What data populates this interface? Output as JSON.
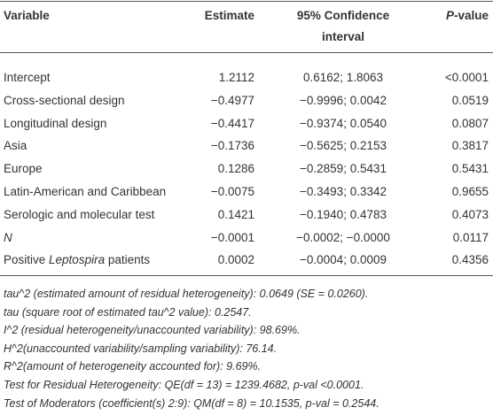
{
  "table": {
    "header": [
      "Variable",
      "Estimate",
      "95% Confidence interval",
      [
        {
          "text": "P",
          "italic": true
        },
        {
          "text": "-value"
        }
      ]
    ],
    "rows": [
      [
        "Intercept",
        "1.2112",
        "0.6162; 1.8063",
        "<0.0001"
      ],
      [
        "Cross-sectional design",
        "−0.4977",
        "−0.9996; 0.0042",
        "0.0519"
      ],
      [
        "Longitudinal design",
        "−0.4417",
        "−0.9374; 0.0540",
        "0.0807"
      ],
      [
        "Asia",
        "−0.1736",
        "−0.5625; 0.2153",
        "0.3817"
      ],
      [
        "Europe",
        "0.1286",
        "−0.2859; 0.5431",
        "0.5431"
      ],
      [
        "Latin-American and Caribbean",
        "−0.0075",
        "−0.3493; 0.3342",
        "0.9655"
      ],
      [
        "Serologic and molecular test",
        "0.1421",
        "−0.1940; 0.4783",
        "0.4073"
      ],
      [
        [
          {
            "text": "N",
            "italic": true
          }
        ],
        "−0.0001",
        "−0.0002; −0.0000",
        "0.0117"
      ],
      [
        [
          {
            "text": "Positive "
          },
          {
            "text": "Leptospira",
            "italic": true
          },
          {
            "text": " patients"
          }
        ],
        "0.0002",
        "−0.0004; 0.0009",
        "0.4356"
      ]
    ],
    "notes": [
      "tau^2 (estimated amount of residual heterogeneity): 0.0649 (SE = 0.0260).",
      "tau (square root of estimated tau^2 value): 0.2547.",
      "I^2 (residual heterogeneity/unaccounted variability): 98.69%.",
      "H^2(unaccounted variability/sampling variability): 76.14.",
      "R^2(amount of heterogeneity accounted for): 9.69%.",
      "Test for Residual Heterogeneity: QE(df = 13) = 1239.4682, p-val <0.0001.",
      "Test of Moderators (coefficient(s) 2:9): QM(df = 8) = 10.1535, p-val = 0.2544."
    ]
  }
}
